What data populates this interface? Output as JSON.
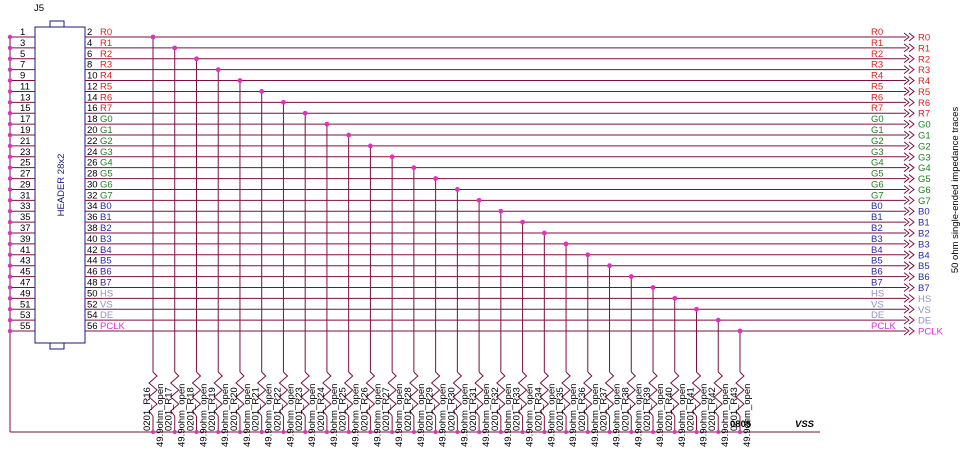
{
  "connector": {
    "ref": "J5",
    "part": "HEADER 28x2"
  },
  "rows": [
    {
      "left": "1",
      "right": "2",
      "signal": "R0",
      "color": "#e02020"
    },
    {
      "left": "3",
      "right": "4",
      "signal": "R1",
      "color": "#e02020"
    },
    {
      "left": "5",
      "right": "6",
      "signal": "R2",
      "color": "#e02020"
    },
    {
      "left": "7",
      "right": "8",
      "signal": "R3",
      "color": "#e02020"
    },
    {
      "left": "9",
      "right": "10",
      "signal": "R4",
      "color": "#e02020"
    },
    {
      "left": "11",
      "right": "12",
      "signal": "R5",
      "color": "#e02020"
    },
    {
      "left": "13",
      "right": "14",
      "signal": "R6",
      "color": "#e02020"
    },
    {
      "left": "15",
      "right": "16",
      "signal": "R7",
      "color": "#e02020"
    },
    {
      "left": "17",
      "right": "18",
      "signal": "G0",
      "color": "#208020"
    },
    {
      "left": "19",
      "right": "20",
      "signal": "G1",
      "color": "#208020"
    },
    {
      "left": "21",
      "right": "22",
      "signal": "G2",
      "color": "#208020"
    },
    {
      "left": "23",
      "right": "24",
      "signal": "G3",
      "color": "#208020"
    },
    {
      "left": "25",
      "right": "26",
      "signal": "G4",
      "color": "#208020"
    },
    {
      "left": "27",
      "right": "28",
      "signal": "G5",
      "color": "#208020"
    },
    {
      "left": "29",
      "right": "30",
      "signal": "G6",
      "color": "#208020"
    },
    {
      "left": "31",
      "right": "32",
      "signal": "G7",
      "color": "#208020"
    },
    {
      "left": "33",
      "right": "34",
      "signal": "B0",
      "color": "#2828b0"
    },
    {
      "left": "35",
      "right": "36",
      "signal": "B1",
      "color": "#2828b0"
    },
    {
      "left": "37",
      "right": "38",
      "signal": "B2",
      "color": "#2828b0"
    },
    {
      "left": "39",
      "right": "40",
      "signal": "B3",
      "color": "#2828b0"
    },
    {
      "left": "41",
      "right": "42",
      "signal": "B4",
      "color": "#2828b0"
    },
    {
      "left": "43",
      "right": "44",
      "signal": "B5",
      "color": "#2828b0"
    },
    {
      "left": "45",
      "right": "46",
      "signal": "B6",
      "color": "#2828b0"
    },
    {
      "left": "47",
      "right": "48",
      "signal": "B7",
      "color": "#2828b0"
    },
    {
      "left": "49",
      "right": "50",
      "signal": "HS",
      "color": "#9090c8"
    },
    {
      "left": "51",
      "right": "52",
      "signal": "VS",
      "color": "#9090c8"
    },
    {
      "left": "53",
      "right": "54",
      "signal": "DE",
      "color": "#9090c8"
    },
    {
      "left": "55",
      "right": "56",
      "signal": "PCLK",
      "color": "#e030e0"
    }
  ],
  "resistors": [
    {
      "footprint": "0201_R16",
      "value": "49.9ohm_open"
    },
    {
      "footprint": "0201_R17",
      "value": "49.9ohm_open"
    },
    {
      "footprint": "0201_R18",
      "value": "49.9ohm_open"
    },
    {
      "footprint": "0201_R19",
      "value": "49.9ohm_open"
    },
    {
      "footprint": "0201_R20",
      "value": "49.9ohm_open"
    },
    {
      "footprint": "0201_R21",
      "value": "49.9ohm_open"
    },
    {
      "footprint": "0201_R22",
      "value": "49.9ohm_open"
    },
    {
      "footprint": "0201_R23",
      "value": "49.9ohm_open"
    },
    {
      "footprint": "0201_R24",
      "value": "49.9ohm_open"
    },
    {
      "footprint": "0201_R25",
      "value": "49.9ohm_open"
    },
    {
      "footprint": "0201_R26",
      "value": "49.9ohm_open"
    },
    {
      "footprint": "0201_R27",
      "value": "49.9ohm_open"
    },
    {
      "footprint": "0201_R28",
      "value": "49.9ohm_open"
    },
    {
      "footprint": "0201_R29",
      "value": "49.9ohm_open"
    },
    {
      "footprint": "0201_R30",
      "value": "49.9ohm_open"
    },
    {
      "footprint": "0201_R31",
      "value": "49.9ohm_open"
    },
    {
      "footprint": "0201_R32",
      "value": "49.9ohm_open"
    },
    {
      "footprint": "0201_R33",
      "value": "49.9ohm_open"
    },
    {
      "footprint": "0201_R34",
      "value": "49.9ohm_open"
    },
    {
      "footprint": "0201_R35",
      "value": "49.9ohm_open"
    },
    {
      "footprint": "0201_R36",
      "value": "49.9ohm_open"
    },
    {
      "footprint": "0201_R37",
      "value": "49.9ohm_open"
    },
    {
      "footprint": "0201_R38",
      "value": "49.9ohm_open"
    },
    {
      "footprint": "0201_R39",
      "value": "49.9ohm_open"
    },
    {
      "footprint": "0201_R40",
      "value": "49.9ohm_open"
    },
    {
      "footprint": "0201_R41",
      "value": "49.9ohm_open"
    },
    {
      "footprint": "0201_R42",
      "value": "49.9ohm_open"
    },
    {
      "footprint": "0201_R43",
      "value": "49.9ohm_open"
    }
  ],
  "package_note": "0805",
  "ground": "VSS",
  "side_note": "50 ohm single-ended impedance traces"
}
